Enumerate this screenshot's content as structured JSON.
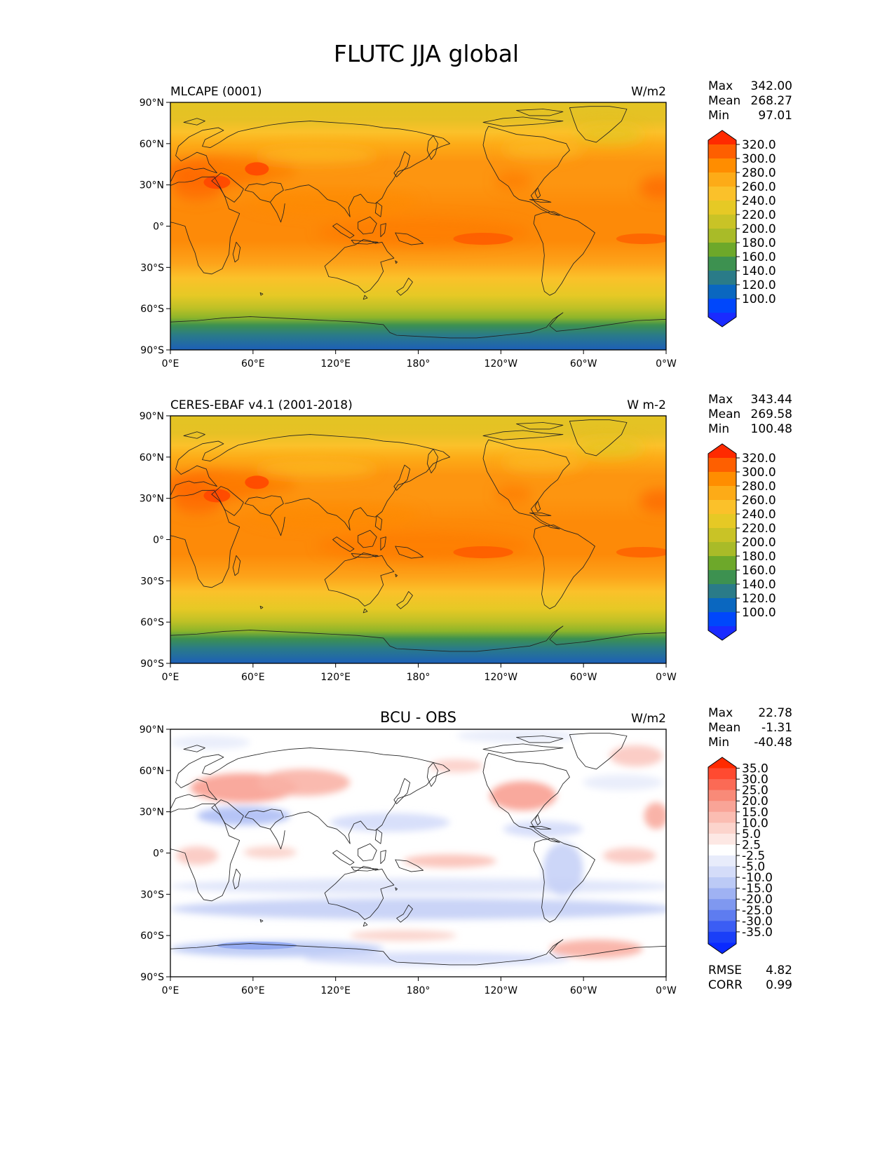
{
  "figure": {
    "title": "FLUTC JJA global"
  },
  "axes": {
    "lat_labels": [
      "90°N",
      "60°N",
      "30°N",
      "0°",
      "30°S",
      "60°S",
      "90°S"
    ],
    "lon_labels": [
      "0°E",
      "60°E",
      "120°E",
      "180°",
      "120°W",
      "60°W",
      "0°W"
    ]
  },
  "panels": [
    {
      "left_title": "MLCAPE (0001)",
      "center_title": "",
      "units": "W/m2",
      "stats": [
        {
          "label": "Max",
          "value": "342.00"
        },
        {
          "label": "Mean",
          "value": "268.27"
        },
        {
          "label": "Min",
          "value": "97.01"
        }
      ],
      "colorbar": {
        "ticks": [
          "320.0",
          "300.0",
          "280.0",
          "260.0",
          "240.0",
          "220.0",
          "200.0",
          "180.0",
          "160.0",
          "140.0",
          "120.0",
          "100.0"
        ],
        "colors": [
          "#ff2a00",
          "#fe5f00",
          "#ff8d00",
          "#fdab17",
          "#fbc12a",
          "#e6c925",
          "#c9c326",
          "#a9bb28",
          "#6da82a",
          "#3d9150",
          "#2a7b88",
          "#0a67c0",
          "#0047fb",
          "#1a2bff"
        ]
      }
    },
    {
      "left_title": "CERES-EBAF v4.1 (2001-2018)",
      "center_title": "",
      "units": "W m-2",
      "stats": [
        {
          "label": "Max",
          "value": "343.44"
        },
        {
          "label": "Mean",
          "value": "269.58"
        },
        {
          "label": "Min",
          "value": "100.48"
        }
      ],
      "colorbar": {
        "ticks": [
          "320.0",
          "300.0",
          "280.0",
          "260.0",
          "240.0",
          "220.0",
          "200.0",
          "180.0",
          "160.0",
          "140.0",
          "120.0",
          "100.0"
        ],
        "colors": [
          "#ff2a00",
          "#fe5f00",
          "#ff8d00",
          "#fdab17",
          "#fbc12a",
          "#e6c925",
          "#c9c326",
          "#a9bb28",
          "#6da82a",
          "#3d9150",
          "#2a7b88",
          "#0a67c0",
          "#0047fb",
          "#1a2bff"
        ]
      }
    },
    {
      "left_title": "",
      "center_title": "BCU - OBS",
      "units": "W/m2",
      "stats": [
        {
          "label": "Max",
          "value": "22.78"
        },
        {
          "label": "Mean",
          "value": "-1.31"
        },
        {
          "label": "Min",
          "value": "-40.48"
        }
      ],
      "colorbar": {
        "ticks": [
          "35.0",
          "30.0",
          "25.0",
          "20.0",
          "15.0",
          "10.0",
          "5.0",
          "2.5",
          "-2.5",
          "-5.0",
          "-10.0",
          "-15.0",
          "-20.0",
          "-25.0",
          "-30.0",
          "-35.0"
        ],
        "colors": [
          "#ff2a00",
          "#ff4a30",
          "#fb6a55",
          "#f98a78",
          "#f9a497",
          "#fbbdb2",
          "#fcd4cc",
          "#fde8e4",
          "#ffffff",
          "#e8ecfb",
          "#d4dcf9",
          "#bccaf6",
          "#9fb2f3",
          "#7f98f0",
          "#5e7cf0",
          "#3b5df4",
          "#1a3ff8",
          "#0a2aff"
        ]
      },
      "extra_stats": [
        {
          "label": "RMSE",
          "value": "4.82"
        },
        {
          "label": "CORR",
          "value": "0.99"
        }
      ]
    }
  ]
}
